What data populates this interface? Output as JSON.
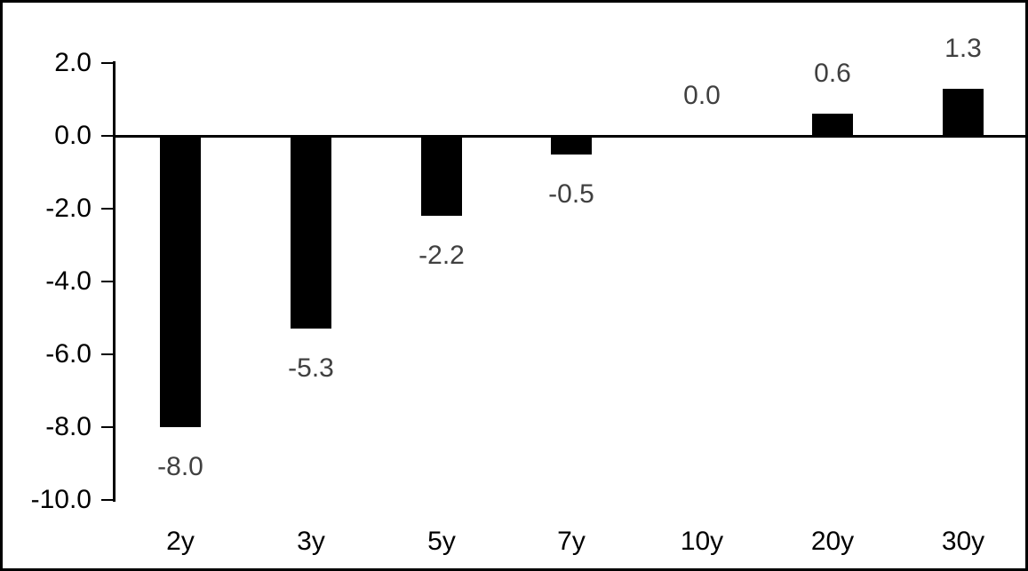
{
  "chart_data": {
    "type": "bar",
    "title": "",
    "xlabel": "",
    "ylabel": "",
    "categories": [
      "2y",
      "3y",
      "5y",
      "7y",
      "10y",
      "20y",
      "30y"
    ],
    "values": [
      -8.0,
      -5.3,
      -2.2,
      -0.5,
      0.0,
      0.6,
      1.3
    ],
    "data_labels": [
      "-8.0",
      "-5.3",
      "-2.2",
      "-0.5",
      "0.0",
      "0.6",
      "1.3"
    ],
    "ylim": [
      -10.0,
      2.0
    ],
    "y_tick_step": 2.0,
    "y_tick_labels": [
      "2.0",
      "0.0",
      "-2.0",
      "-4.0",
      "-6.0",
      "-8.0",
      "-10.0"
    ],
    "y_tick_values": [
      2.0,
      0.0,
      -2.0,
      -4.0,
      -6.0,
      -8.0,
      -10.0
    ],
    "grid": false,
    "legend": false,
    "colors": {
      "bar": "#000000",
      "axis": "#000000",
      "tick_label": "#000000",
      "data_label": "#404040",
      "background": "#ffffff",
      "border": "#000000"
    }
  }
}
